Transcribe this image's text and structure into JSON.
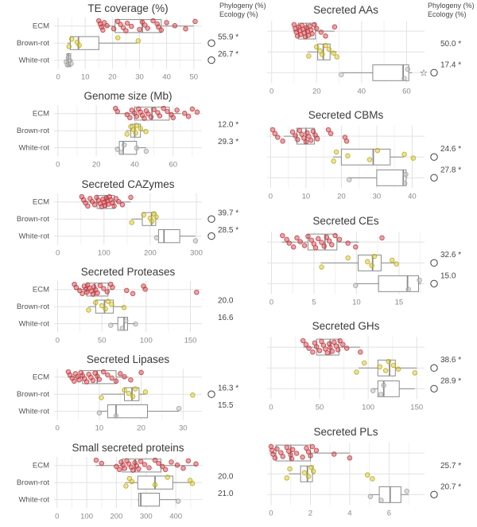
{
  "figure": {
    "annotation_header": [
      "Phylogeny (%)",
      "Ecology (%)"
    ],
    "categories": [
      "ECM",
      "Brown-rot",
      "White-rot"
    ],
    "colors": {
      "ecm_point": "#d7474d",
      "ecm_stroke": "#b9383e",
      "brownrot_point": "#d9c82f",
      "brownrot_stroke": "#b5a61a",
      "whiterot_point": "#bdbdbd",
      "whiterot_stroke": "#9e9e9e",
      "box_stroke": "#8a8a8a",
      "grid_major": "#e2e2e2",
      "grid_minor": "#f1f1f1",
      "title_text": "#3a3a3a",
      "axis_text": "#8a8a8a",
      "category_text": "#555555",
      "annotation_text": "#454545",
      "marker_stroke": "#3d3d3d"
    }
  },
  "chart_data": [
    {
      "type": "boxplot-horizontal",
      "title": "TE coverage (%)",
      "column": "left",
      "show_header": true,
      "x_ticks": [
        0,
        10,
        20,
        30,
        40,
        50
      ],
      "x_domain": [
        -1.5,
        53
      ],
      "phylogeny": "55.9 *",
      "ecology": "26.7 *",
      "row_markers": {
        "Brown-rot": [
          "circle"
        ],
        "White-rot": [
          "circle"
        ]
      },
      "groups": [
        {
          "name": "ECM",
          "box": {
            "low": 15,
            "q1": 21,
            "median": 31,
            "q3": 38,
            "high": 50
          },
          "points": [
            15,
            15.5,
            16,
            16.5,
            17,
            18,
            20.5,
            22,
            23,
            24,
            25,
            25.5,
            27,
            30,
            31,
            32,
            33,
            35,
            36.5,
            37,
            38,
            40,
            43,
            47,
            50.5
          ]
        },
        {
          "name": "Brown-rot",
          "box": {
            "low": 3.5,
            "q1": 4.5,
            "median": 7.5,
            "q3": 15,
            "high": 29
          },
          "points": [
            4,
            5,
            7,
            7.8,
            22,
            29.5
          ]
        },
        {
          "name": "White-rot",
          "box": {
            "low": 2.8,
            "q1": 3.2,
            "median": 3.8,
            "q3": 4.6,
            "high": 5.5
          },
          "points": [
            3,
            3.4,
            3.8,
            4.2,
            4.8
          ]
        }
      ]
    },
    {
      "type": "boxplot-horizontal",
      "title": "Genome size (Mb)",
      "column": "left",
      "show_header": false,
      "x_ticks": [
        0,
        20,
        40,
        60
      ],
      "x_domain": [
        -2,
        75
      ],
      "phylogeny": "12.0 *",
      "ecology": "29.3 *",
      "row_markers": {},
      "groups": [
        {
          "name": "ECM",
          "box": {
            "low": 30,
            "q1": 40,
            "median": 49,
            "q3": 58,
            "high": 64
          },
          "points": [
            30,
            31,
            36,
            37.5,
            38.5,
            40,
            41,
            42,
            43,
            44,
            45,
            46,
            47,
            48.5,
            50,
            52,
            53,
            55,
            57,
            59,
            60,
            62,
            66,
            68,
            70,
            72.5
          ]
        },
        {
          "name": "Brown-rot",
          "box": {
            "low": 35.5,
            "q1": 38,
            "median": 40,
            "q3": 43,
            "high": 45.5
          },
          "points": [
            36,
            38,
            39.5,
            40.5,
            41,
            43,
            45.8
          ]
        },
        {
          "name": "White-rot",
          "box": {
            "low": 30.5,
            "q1": 32,
            "median": 34,
            "q3": 41,
            "high": 46
          },
          "points": [
            31,
            33,
            34.5,
            41,
            46
          ]
        }
      ]
    },
    {
      "type": "boxplot-horizontal",
      "title": "Secreted CAZymes",
      "column": "left",
      "show_header": false,
      "x_ticks": [
        0,
        100,
        200,
        300
      ],
      "x_domain": [
        -8,
        312
      ],
      "phylogeny": "39.7 *",
      "ecology": "28.5 *",
      "row_markers": {
        "Brown-rot": [
          "circle"
        ],
        "White-rot": [
          "circle"
        ]
      },
      "groups": [
        {
          "name": "ECM",
          "box": {
            "low": 52,
            "q1": 85,
            "median": 105,
            "q3": 122,
            "high": 158
          },
          "points": [
            52,
            56,
            60,
            65,
            70,
            75,
            80,
            84,
            88,
            92,
            95,
            98,
            100,
            102,
            105,
            107,
            110,
            112,
            115,
            118,
            122,
            126,
            132,
            140,
            158
          ]
        },
        {
          "name": "Brown-rot",
          "box": {
            "low": 160,
            "q1": 183,
            "median": 203,
            "q3": 212,
            "high": 216
          },
          "points": [
            160,
            186,
            200,
            204,
            208,
            213
          ]
        },
        {
          "name": "White-rot",
          "box": {
            "low": 213,
            "q1": 218,
            "median": 230,
            "q3": 264,
            "high": 298
          },
          "points": [
            214,
            298
          ]
        }
      ]
    },
    {
      "type": "boxplot-horizontal",
      "title": "Secreted Proteases",
      "column": "left",
      "show_header": false,
      "x_ticks": [
        0,
        50,
        100,
        150
      ],
      "x_domain": [
        -4,
        163
      ],
      "phylogeny": "20.0",
      "ecology": "16.6",
      "row_markers": {},
      "groups": [
        {
          "name": "ECM",
          "box": {
            "low": 19,
            "q1": 33,
            "median": 42,
            "q3": 57,
            "high": 62
          },
          "points": [
            19,
            21,
            25,
            28,
            30,
            32,
            33,
            34,
            36,
            38,
            40,
            41,
            43,
            45,
            48,
            52,
            56,
            60,
            62,
            78,
            85,
            97,
            99,
            157
          ]
        },
        {
          "name": "Brown-rot",
          "box": {
            "low": 35,
            "q1": 43,
            "median": 53,
            "q3": 63,
            "high": 75
          },
          "points": [
            35,
            43,
            50,
            54,
            57,
            61,
            75
          ]
        },
        {
          "name": "White-rot",
          "box": {
            "low": 60,
            "q1": 68,
            "median": 75,
            "q3": 79,
            "high": 88
          },
          "points": [
            60,
            73,
            77,
            88
          ]
        }
      ]
    },
    {
      "type": "boxplot-horizontal",
      "title": "Secreted Lipases",
      "column": "left",
      "show_header": false,
      "x_ticks": [
        0,
        10,
        20,
        30
      ],
      "x_domain": [
        -0.8,
        34.5
      ],
      "phylogeny": "16.3 *",
      "ecology": "15.5",
      "row_markers": {
        "Brown-rot": [
          "circle"
        ]
      },
      "groups": [
        {
          "name": "ECM",
          "box": {
            "low": 2.5,
            "q1": 6,
            "median": 9.5,
            "q3": 14,
            "high": 17
          },
          "points": [
            2.6,
            3,
            3.5,
            4,
            4.3,
            4.8,
            5.2,
            5.6,
            6,
            6.5,
            7,
            7.5,
            8,
            8.5,
            9,
            9.5,
            10,
            11,
            12,
            13,
            14,
            15,
            16,
            17.5,
            20
          ]
        },
        {
          "name": "Brown-rot",
          "box": {
            "low": 10.5,
            "q1": 16,
            "median": 17.8,
            "q3": 19.5,
            "high": 21
          },
          "points": [
            10.5,
            16,
            17,
            18,
            18.6,
            21,
            32.3
          ]
        },
        {
          "name": "White-rot",
          "box": {
            "low": 10,
            "q1": 12,
            "median": 14,
            "q3": 21.5,
            "high": 29
          },
          "points": [
            10,
            14,
            29
          ]
        }
      ]
    },
    {
      "type": "boxplot-horizontal",
      "title": "Small secreted proteins",
      "column": "left",
      "show_header": false,
      "x_ticks": [
        0,
        100,
        200,
        300,
        400
      ],
      "x_domain": [
        -10,
        488
      ],
      "phylogeny": "20.0",
      "ecology": "21.0",
      "row_markers": {},
      "groups": [
        {
          "name": "ECM",
          "box": {
            "low": 130,
            "q1": 220,
            "median": 263,
            "q3": 350,
            "high": 470
          },
          "points": [
            132,
            150,
            200,
            210,
            216,
            222,
            228,
            235,
            242,
            250,
            256,
            262,
            268,
            275,
            282,
            295,
            310,
            330,
            342,
            355,
            365,
            385,
            405,
            425,
            442,
            468
          ]
        },
        {
          "name": "Brown-rot",
          "box": {
            "low": 230,
            "q1": 272,
            "median": 330,
            "q3": 390,
            "high": 455
          },
          "points": [
            232,
            244,
            252,
            330,
            372,
            448,
            456
          ]
        },
        {
          "name": "White-rot",
          "box": {
            "low": 272,
            "q1": 275,
            "median": 282,
            "q3": 345,
            "high": 405
          },
          "points": [
            408
          ]
        }
      ]
    },
    {
      "type": "boxplot-horizontal",
      "title": "Secreted AAs",
      "column": "right",
      "show_header": true,
      "x_ticks": [
        0,
        20,
        40,
        60
      ],
      "x_domain": [
        -2,
        68
      ],
      "phylogeny": "50.0 *",
      "ecology": "17.4 *",
      "row_markers": {
        "White-rot": [
          "star",
          "circle"
        ]
      },
      "groups": [
        {
          "name": "ECM",
          "box": {
            "low": 9.5,
            "q1": 12,
            "median": 15.5,
            "q3": 19.5,
            "high": 28
          },
          "points": [
            10,
            10.5,
            11,
            11.5,
            12,
            12.5,
            13,
            13.5,
            14,
            14.5,
            15,
            15.5,
            16,
            16.5,
            17,
            17.5,
            18,
            19,
            20,
            22,
            24,
            28
          ]
        },
        {
          "name": "Brown-rot",
          "box": {
            "low": 16,
            "q1": 20.5,
            "median": 23,
            "q3": 26,
            "high": 29
          },
          "points": [
            16.5,
            20,
            21.5,
            22.5,
            24,
            25.5,
            27.5,
            29
          ]
        },
        {
          "name": "White-rot",
          "box": {
            "low": 31,
            "q1": 45,
            "median": 58.5,
            "q3": 61,
            "high": 62.5
          },
          "points": [
            31,
            59,
            60.5
          ]
        }
      ]
    },
    {
      "type": "boxplot-horizontal",
      "title": "Secreted CBMs",
      "column": "right",
      "show_header": false,
      "x_ticks": [
        0,
        10,
        20,
        30,
        40
      ],
      "x_domain": [
        -1,
        43.5
      ],
      "phylogeny": "24.6 *",
      "ecology": "27.8 *",
      "row_markers": {
        "Brown-rot": [
          "circle"
        ],
        "White-rot": [
          "circle"
        ]
      },
      "groups": [
        {
          "name": "ECM",
          "box": {
            "low": 3.7,
            "q1": 7.4,
            "median": 10,
            "q3": 12.4,
            "high": 13.8
          },
          "points": [
            0.6,
            1.2,
            2,
            3.4,
            6.2,
            7,
            7.6,
            8.2,
            8.8,
            9.4,
            10,
            10.3,
            10.8,
            11.4,
            12,
            12.6,
            13.2,
            16.3,
            17,
            21,
            21.5
          ]
        },
        {
          "name": "Brown-rot",
          "box": {
            "low": 17.6,
            "q1": 20,
            "median": 29,
            "q3": 33.8,
            "high": 37.6
          },
          "points": [
            17.8,
            18.6,
            21.8,
            28,
            30.2,
            37.8,
            40.3
          ]
        },
        {
          "name": "White-rot",
          "box": {
            "low": 22,
            "q1": 30,
            "median": 37.5,
            "q3": 38.3,
            "high": 38.6
          },
          "points": [
            22.2,
            37.9,
            38.2
          ]
        }
      ]
    },
    {
      "type": "boxplot-horizontal",
      "title": "Secreted CEs",
      "column": "right",
      "show_header": false,
      "x_ticks": [
        0,
        5,
        10,
        15
      ],
      "x_domain": [
        -0.5,
        18
      ],
      "phylogeny": "32.6 *",
      "ecology": "15.0",
      "row_markers": {
        "Brown-rot": [
          "circle"
        ],
        "White-rot": [
          "circle"
        ]
      },
      "groups": [
        {
          "name": "ECM",
          "box": {
            "low": 1.2,
            "q1": 4.3,
            "median": 6.3,
            "q3": 7.7,
            "high": 10.3
          },
          "points": [
            1.3,
            1.8,
            2.1,
            2.6,
            3,
            3.4,
            3.9,
            4.3,
            4.7,
            5,
            5.2,
            5.5,
            5.9,
            6.2,
            6.5,
            6.8,
            7.1,
            7.5,
            8,
            9,
            9.9,
            13
          ]
        },
        {
          "name": "Brown-rot",
          "box": {
            "low": 5.8,
            "q1": 10.2,
            "median": 11.9,
            "q3": 12.9,
            "high": 14.6
          },
          "points": [
            5.9,
            9,
            11.3,
            11.8,
            12.1,
            14.2,
            14.7
          ]
        },
        {
          "name": "White-rot",
          "box": {
            "low": 9.8,
            "q1": 12.6,
            "median": 16,
            "q3": 17.3,
            "high": 17.6
          },
          "points": [
            9.9,
            16.1,
            17.4
          ]
        }
      ]
    },
    {
      "type": "boxplot-horizontal",
      "title": "Secreted GHs",
      "column": "right",
      "show_header": false,
      "x_ticks": [
        0,
        50,
        100,
        150
      ],
      "x_domain": [
        -4,
        158
      ],
      "phylogeny": "38.6 *",
      "ecology": "28.9 *",
      "row_markers": {
        "Brown-rot": [
          "circle"
        ],
        "White-rot": [
          "circle"
        ]
      },
      "groups": [
        {
          "name": "ECM",
          "box": {
            "low": 33,
            "q1": 47,
            "median": 61,
            "q3": 70,
            "high": 92
          },
          "points": [
            33,
            36,
            39,
            43,
            45,
            47,
            50,
            52,
            54,
            56,
            58,
            60,
            61,
            63,
            65,
            67,
            69,
            71,
            74,
            78,
            92
          ]
        },
        {
          "name": "Brown-rot",
          "box": {
            "low": 90,
            "q1": 110,
            "median": 122,
            "q3": 128,
            "high": 150
          },
          "points": [
            88,
            96,
            112,
            118,
            121,
            126,
            131,
            148
          ]
        },
        {
          "name": "White-rot",
          "box": {
            "low": 104,
            "q1": 110,
            "median": 116,
            "q3": 132,
            "high": 148
          },
          "points": [
            105,
            113,
            116
          ]
        }
      ]
    },
    {
      "type": "boxplot-horizontal",
      "title": "Secreted PLs",
      "column": "right",
      "show_header": false,
      "x_ticks": [
        0,
        2,
        4,
        6
      ],
      "x_domain": [
        -0.2,
        7.8
      ],
      "phylogeny": "25.7 *",
      "ecology": "20.7 *",
      "row_markers": {
        "White-rot": [
          "circle"
        ]
      },
      "groups": [
        {
          "name": "ECM",
          "box": {
            "low": 0,
            "q1": 0.25,
            "median": 1,
            "q3": 2,
            "high": 4
          },
          "points": [
            0,
            0.05,
            0.1,
            0.2,
            0.3,
            0.5,
            0.6,
            0.8,
            0.9,
            1,
            1.05,
            1.1,
            1.3,
            1.6,
            1.8,
            1.9,
            2,
            2.1,
            2.3,
            3.2,
            4
          ]
        },
        {
          "name": "Brown-rot",
          "box": {
            "low": 0.9,
            "q1": 1.5,
            "median": 1.85,
            "q3": 2.1,
            "high": 2.2
          },
          "points": [
            0.8,
            0.95,
            1.7,
            1.9,
            2.05,
            2.15,
            4.9,
            5.15
          ]
        },
        {
          "name": "White-rot",
          "box": {
            "low": 5,
            "q1": 5.5,
            "median": 6.05,
            "q3": 6.6,
            "high": 7
          },
          "points": [
            5.05,
            5.6,
            6.9
          ]
        }
      ]
    }
  ]
}
